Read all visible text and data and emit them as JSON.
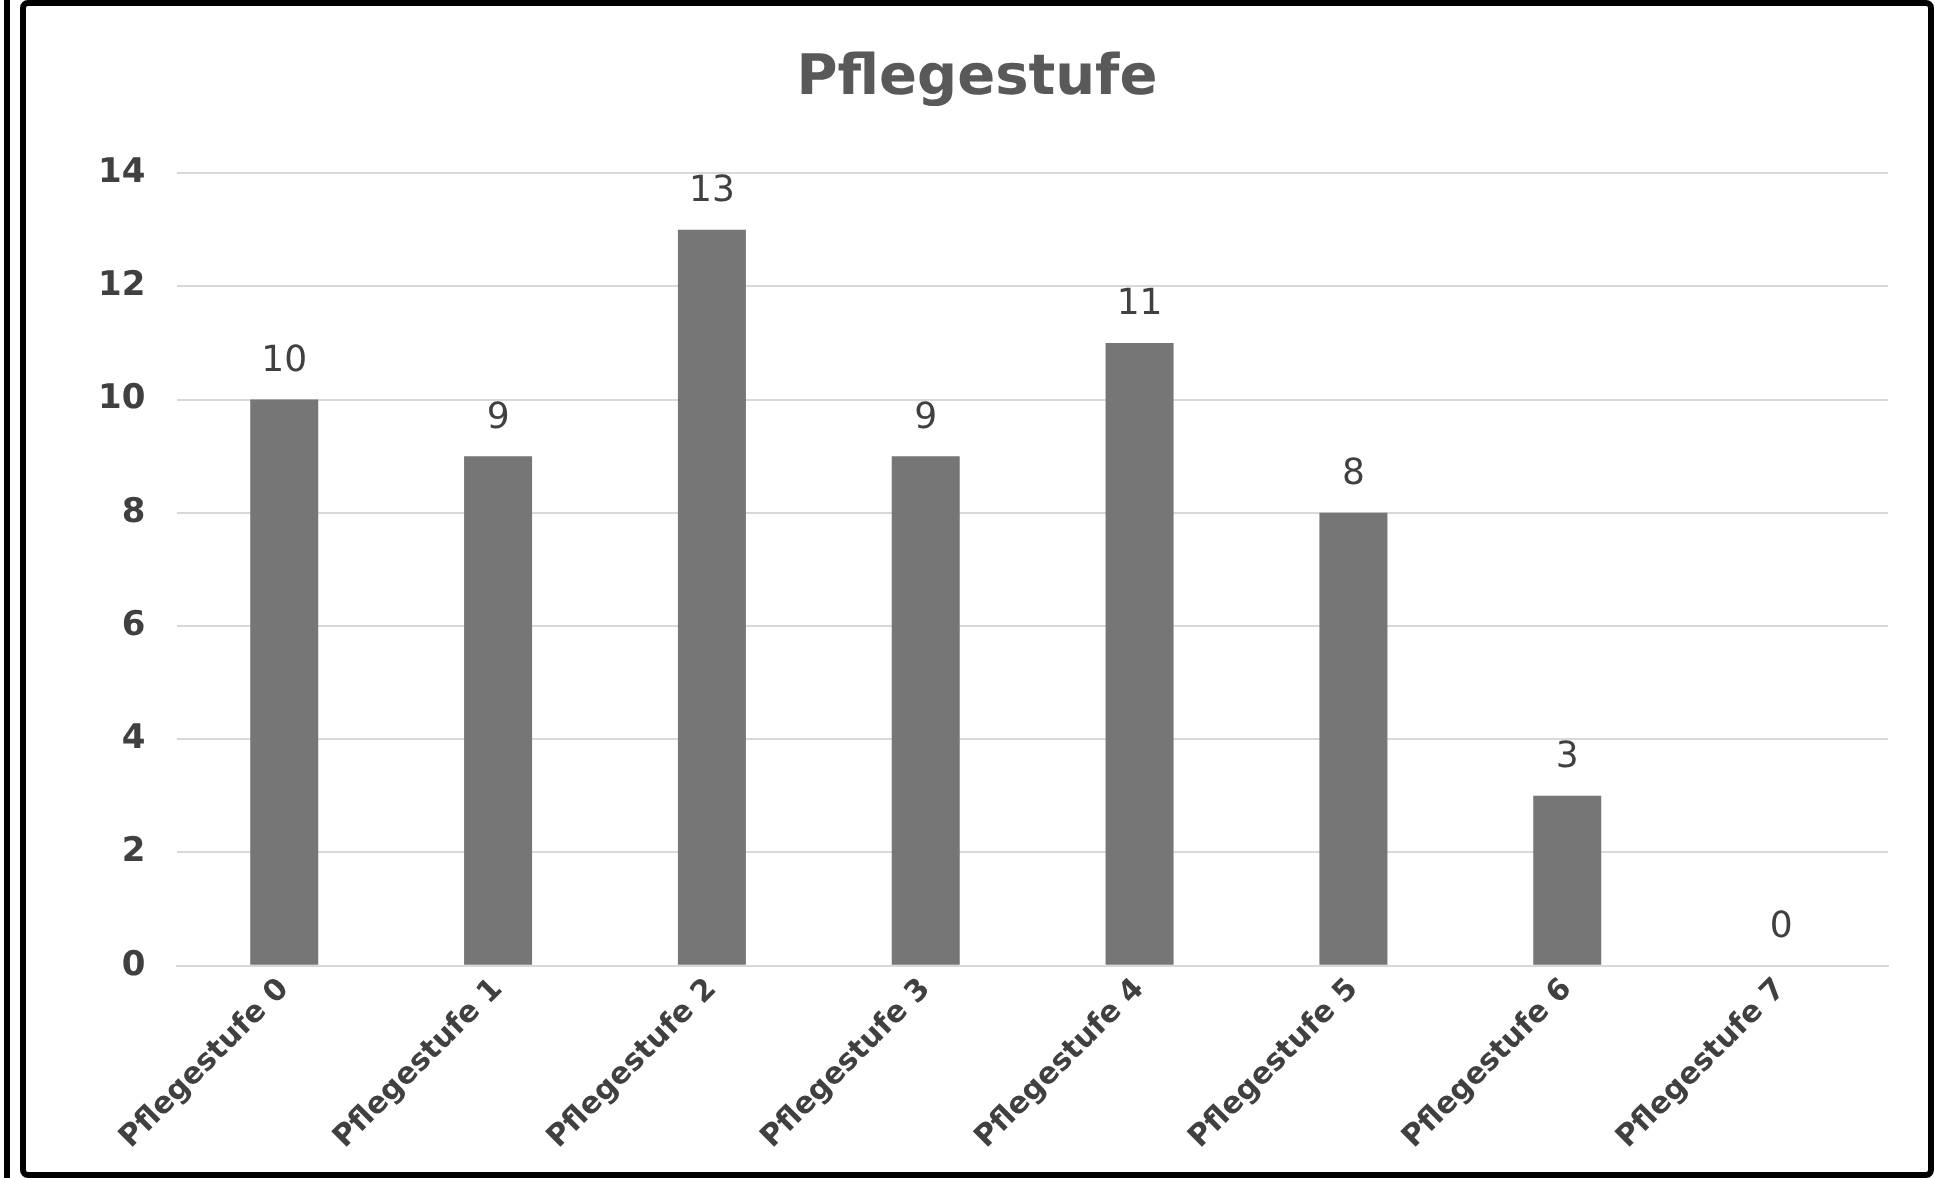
{
  "chart_data": {
    "type": "bar",
    "title": "Pflegestufe",
    "categories": [
      "Pflegestufe 0",
      "Pflegestufe 1",
      "Pflegestufe 2",
      "Pflegestufe 3",
      "Pflegestufe 4",
      "Pflegestufe 5",
      "Pflegestufe 6",
      "Pflegestufe 7"
    ],
    "values": [
      10,
      9,
      13,
      9,
      11,
      8,
      3,
      0
    ],
    "color": "#767676",
    "ylim": [
      0,
      14
    ],
    "yticks": [
      0,
      2,
      4,
      6,
      8,
      10,
      12,
      14
    ],
    "grid": "y",
    "legend": false,
    "data_labels": true
  }
}
